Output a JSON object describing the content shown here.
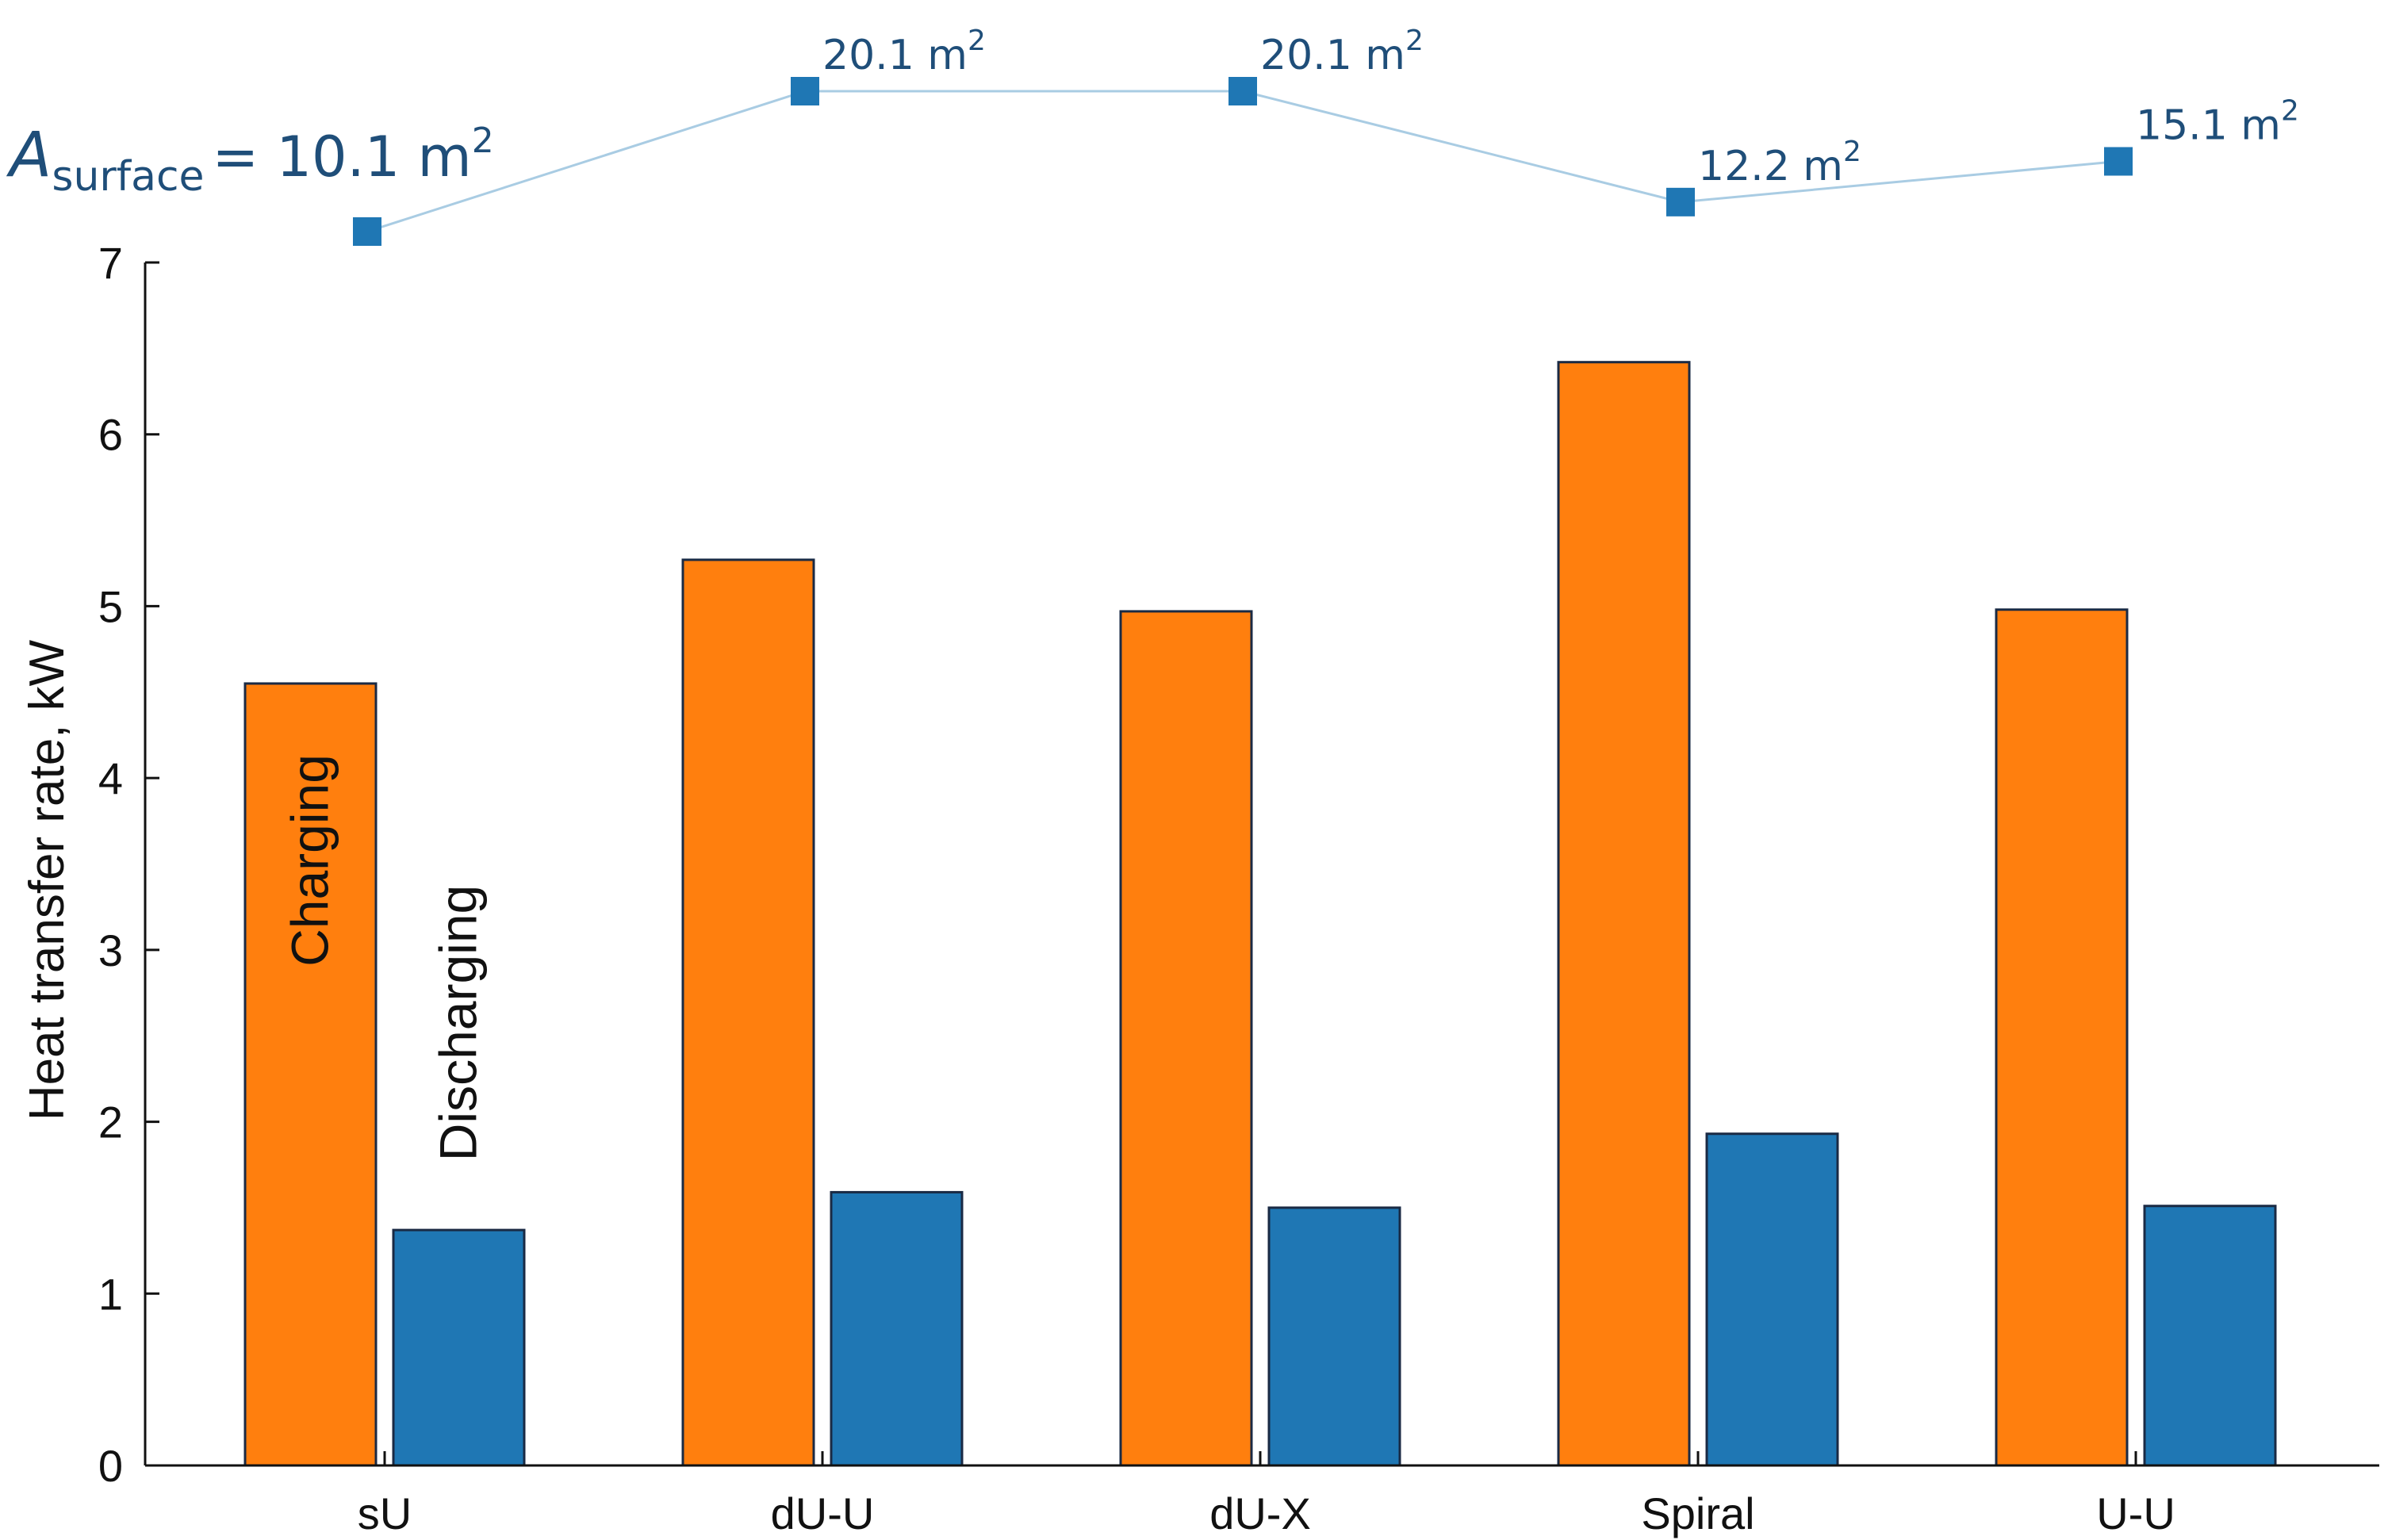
{
  "chart_data": {
    "type": "bar",
    "categories": [
      "sU",
      "dU-U",
      "dU-X",
      "Spiral",
      "U-U"
    ],
    "series": [
      {
        "name": "Charging",
        "color": "#ff7f0e",
        "values": [
          4.55,
          5.27,
          4.97,
          6.42,
          4.98
        ]
      },
      {
        "name": "Discharging",
        "color": "#1f77b4",
        "values": [
          1.37,
          1.59,
          1.5,
          1.93,
          1.51
        ]
      }
    ],
    "ylabel": "Heat transfer rate, kW",
    "xlabel": "",
    "ylim": [
      0,
      7
    ],
    "yticks": [
      0,
      1,
      2,
      3,
      4,
      5,
      6,
      7
    ],
    "grid": false,
    "surface_area": {
      "title_symbol": "A",
      "title_subscript": "surface",
      "title_value": "= 10.1 m",
      "unit_power": "2",
      "labels": [
        "10.1 m",
        "20.1 m",
        "20.1 m",
        "12.2 m",
        "15.1 m"
      ],
      "values": [
        10.1,
        20.1,
        20.1,
        12.2,
        15.1
      ],
      "marker_color": "#1f77b4",
      "line_color": "#a9cce3",
      "text_color": "#1f4e79"
    }
  }
}
